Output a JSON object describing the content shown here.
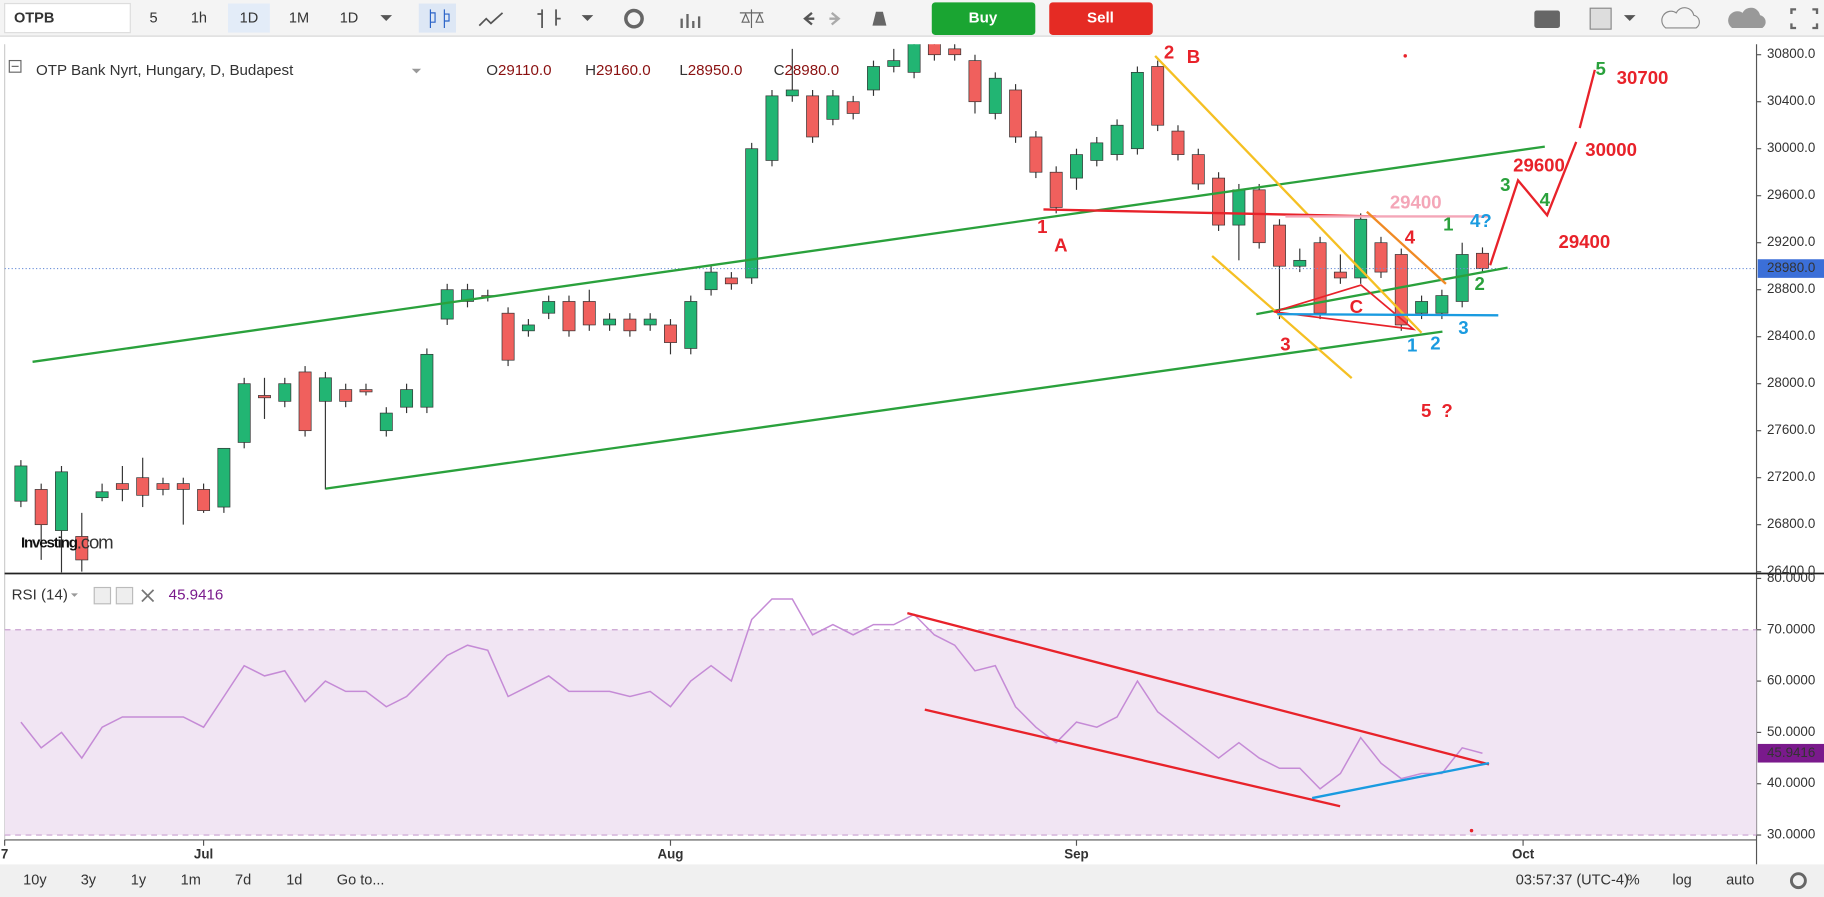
{
  "toolbar": {
    "symbol": "OTPB",
    "intervals": [
      "5",
      "1h",
      "1D",
      "1M",
      "1D"
    ],
    "buy": "Buy",
    "sell": "Sell"
  },
  "legend": {
    "title": "OTP Bank Nyrt, Hungary, D, Budapest",
    "items": [
      [
        "O",
        "29110.0"
      ],
      [
        "H",
        "29160.0"
      ],
      [
        "L",
        "28950.0"
      ],
      [
        "C",
        "28980.0"
      ]
    ]
  },
  "watermark": [
    "Investing",
    ".com"
  ],
  "rsi_legend": {
    "title": "RSI (14)",
    "value": "45.9416"
  },
  "footer": {
    "ranges": [
      "10y",
      "3y",
      "1y",
      "1m",
      "7d",
      "1d",
      "Go to..."
    ],
    "clock": "03:57:37 (UTC-4)",
    "options": [
      "%",
      "log",
      "auto"
    ]
  },
  "annotations": [
    {
      "text": "2",
      "color": "#e8222a"
    },
    {
      "text": "B",
      "color": "#e8222a"
    },
    {
      "text": "1",
      "color": "#e8222a"
    },
    {
      "text": "A",
      "color": "#e8222a"
    },
    {
      "text": "1",
      "color": "#2aa13c"
    },
    {
      "text": "4?",
      "color": "#1a9be0"
    },
    {
      "text": "29400",
      "color": "#f4a6b8"
    },
    {
      "text": "4",
      "color": "#e8222a"
    },
    {
      "text": "2",
      "color": "#2aa13c"
    },
    {
      "text": "C",
      "color": "#e8222a"
    },
    {
      "text": "3",
      "color": "#e8222a"
    },
    {
      "text": "1",
      "color": "#1a9be0"
    },
    {
      "text": "2",
      "color": "#1a9be0"
    },
    {
      "text": "3",
      "color": "#1a9be0"
    },
    {
      "text": "5",
      "color": "#e8222a"
    },
    {
      "text": "?",
      "color": "#e8222a"
    },
    {
      "text": "3",
      "color": "#2aa13c"
    },
    {
      "text": "29600",
      "color": "#e8222a"
    },
    {
      "text": "4",
      "color": "#2aa13c"
    },
    {
      "text": "29400",
      "color": "#e8222a"
    },
    {
      "text": "30000",
      "color": "#e8222a"
    },
    {
      "text": "5",
      "color": "#2aa13c"
    },
    {
      "text": "30700",
      "color": "#e8222a"
    }
  ],
  "chart_data": [
    {
      "type": "candlestick",
      "up_color": "#22b573",
      "down_color": "#f0605d",
      "xlim": [
        -0.8,
        85.5
      ],
      "xticks": [
        {
          "value": -0.8,
          "label": "7"
        },
        {
          "value": 9,
          "label": "Jul"
        },
        {
          "value": 32,
          "label": "Aug"
        },
        {
          "value": 52,
          "label": "Sep"
        },
        {
          "value": 74,
          "label": "Oct"
        }
      ],
      "ylim": [
        26394,
        30889
      ],
      "yticks": [
        {
          "value": 26400,
          "label": "26400.0"
        },
        {
          "value": 26800,
          "label": "26800.0"
        },
        {
          "value": 27200,
          "label": "27200.0"
        },
        {
          "value": 27600,
          "label": "27600.0"
        },
        {
          "value": 28000,
          "label": "28000.0"
        },
        {
          "value": 28400,
          "label": "28400.0"
        },
        {
          "value": 28800,
          "label": "28800.0"
        },
        {
          "value": 29200,
          "label": "29200.0"
        },
        {
          "value": 29600,
          "label": "29600.0"
        },
        {
          "value": 30000,
          "label": "30000.0"
        },
        {
          "value": 30400,
          "label": "30400.0"
        },
        {
          "value": 30800,
          "label": "30800.0"
        }
      ],
      "last_price": {
        "value": 28980,
        "label": "28980.0"
      },
      "open": [
        27000,
        27100,
        26750,
        26700,
        27030,
        27150,
        27200,
        27150,
        27150,
        27100,
        26950,
        27500,
        27900,
        27850,
        28100,
        27850,
        27950,
        27950,
        27600,
        27800,
        27800,
        28550,
        28700,
        28750,
        28600,
        28450,
        28600,
        28700,
        28700,
        28500,
        28550,
        28500,
        28500,
        28300,
        28800,
        28900,
        28900,
        29900,
        30450,
        30450,
        30250,
        30400,
        30500,
        30700,
        30650,
        30900,
        30850,
        30750,
        30300,
        30500,
        30100,
        29800,
        29750,
        29900,
        29950,
        30000,
        30700,
        30150,
        29950,
        29750,
        29350,
        29650,
        29350,
        29000,
        29200,
        28950,
        28900,
        29200,
        29100,
        28600,
        28600,
        28700,
        29110
      ],
      "high": [
        27350,
        27150,
        27300,
        26900,
        27150,
        27300,
        27370,
        27200,
        27200,
        27150,
        27450,
        28050,
        28050,
        28050,
        28150,
        28100,
        28000,
        28000,
        27800,
        28000,
        28300,
        28850,
        28850,
        28800,
        28650,
        28550,
        28750,
        28750,
        28800,
        28600,
        28600,
        28600,
        28550,
        28750,
        29000,
        28950,
        30050,
        30500,
        30850,
        30500,
        30500,
        30450,
        30750,
        30850,
        30950,
        30950,
        30900,
        30800,
        30650,
        30550,
        30150,
        29850,
        30000,
        30100,
        30250,
        30700,
        30750,
        30200,
        30000,
        29800,
        29700,
        29700,
        29400,
        29150,
        29250,
        29100,
        29450,
        29250,
        29150,
        28750,
        28800,
        29200,
        29160
      ],
      "low": [
        26950,
        26500,
        26350,
        26400,
        27000,
        27000,
        26950,
        27050,
        26800,
        26900,
        26900,
        27450,
        27700,
        27800,
        27550,
        27100,
        27800,
        27900,
        27550,
        27750,
        27750,
        28500,
        28650,
        28700,
        28150,
        28400,
        28550,
        28400,
        28450,
        28450,
        28400,
        28450,
        28250,
        28250,
        28750,
        28800,
        28850,
        29850,
        30400,
        30050,
        30200,
        30250,
        30450,
        30650,
        30600,
        30750,
        30750,
        30300,
        30250,
        30050,
        29750,
        29450,
        29650,
        29850,
        29900,
        29950,
        30150,
        29900,
        29650,
        29300,
        29050,
        29150,
        28550,
        28950,
        28550,
        28850,
        28850,
        28900,
        28450,
        28550,
        28550,
        28650,
        28950
      ],
      "close": [
        27300,
        26800,
        27250,
        26500,
        27080,
        27100,
        27050,
        27100,
        27100,
        26920,
        27450,
        28000,
        27880,
        28000,
        27600,
        28050,
        27850,
        27930,
        27750,
        27950,
        28250,
        28800,
        28800,
        28740,
        28200,
        28500,
        28700,
        28450,
        28500,
        28550,
        28450,
        28550,
        28350,
        28700,
        28950,
        28850,
        30000,
        30450,
        30500,
        30100,
        30450,
        30300,
        30700,
        30750,
        30900,
        30800,
        30800,
        30400,
        30600,
        30100,
        29800,
        29500,
        29950,
        30050,
        30200,
        30650,
        30200,
        29950,
        29700,
        29350,
        29650,
        29200,
        29000,
        29050,
        28600,
        28900,
        29400,
        28950,
        28500,
        28700,
        28750,
        29100,
        28980
      ]
    },
    {
      "type": "line",
      "color": "#c58bd6",
      "xlim": [
        -0.8,
        85.5
      ],
      "ylim": [
        29.5,
        80.5
      ],
      "yticks": [
        {
          "value": 30,
          "label": "30.0000"
        },
        {
          "value": 40,
          "label": "40.0000"
        },
        {
          "value": 50,
          "label": "50.0000"
        },
        {
          "value": 60,
          "label": "60.0000"
        },
        {
          "value": 70,
          "label": "70.0000"
        },
        {
          "value": 80,
          "label": "80.0000"
        }
      ],
      "band": [
        30,
        70
      ],
      "last_value": {
        "value": 45.9416,
        "label": "45.9416"
      },
      "values": [
        52,
        47,
        50,
        45,
        51,
        53,
        53,
        53,
        53,
        51,
        57,
        63,
        61,
        62,
        56,
        60,
        58,
        58,
        55,
        57,
        61,
        65,
        67,
        66,
        57,
        59,
        61,
        58,
        58,
        58,
        57,
        58,
        55,
        60,
        63,
        60,
        72,
        76,
        76,
        69,
        71,
        69,
        71,
        71,
        73,
        69,
        67,
        62,
        63,
        55,
        51,
        48,
        52,
        51,
        53,
        60,
        54,
        51,
        48,
        45,
        48,
        45,
        43,
        43,
        39,
        42,
        49,
        44,
        41,
        42,
        42,
        47,
        45.9416
      ]
    }
  ]
}
